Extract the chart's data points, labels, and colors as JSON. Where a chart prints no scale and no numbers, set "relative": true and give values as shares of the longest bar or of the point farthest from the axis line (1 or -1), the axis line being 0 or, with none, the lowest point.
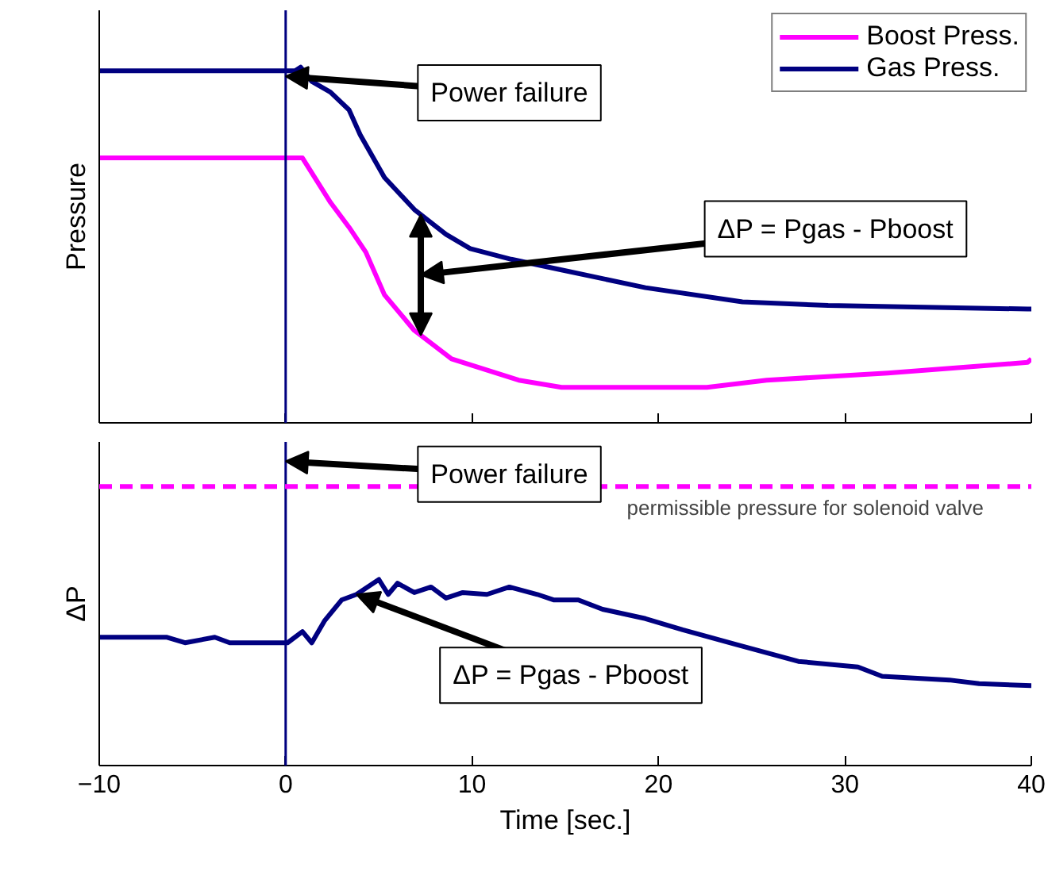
{
  "chart_data": [
    {
      "type": "line",
      "ylabel": "Pressure",
      "relative": true,
      "xlim": [
        -10,
        40
      ],
      "xticks": [
        -10,
        0,
        10,
        20,
        30,
        40
      ],
      "tick_labels": false,
      "legend": "top right",
      "line_style": "solid",
      "series": [
        {
          "name": "Boost Press.",
          "color": "#ff00ff",
          "x": [
            -10,
            0.9,
            2.4,
            3.4,
            4.3,
            5.3,
            6.9,
            7.9,
            8.9,
            12.5,
            14.8,
            22.6,
            25.8,
            32.3,
            39.8,
            40
          ],
          "values": [
            0.745,
            0.745,
            0.62,
            0.55,
            0.48,
            0.36,
            0.26,
            0.22,
            0.18,
            0.12,
            0.1,
            0.1,
            0.12,
            0.14,
            0.17,
            0.18
          ]
        },
        {
          "name": "Gas Press.",
          "color": "#000080",
          "x": [
            -10,
            0.5,
            0.8,
            1.4,
            2.4,
            3.4,
            4.0,
            5.3,
            6.9,
            8.6,
            9.9,
            12.1,
            14.8,
            19.3,
            24.5,
            29.1,
            39.8,
            40
          ],
          "values": [
            0.99,
            0.99,
            1.0,
            0.96,
            0.93,
            0.88,
            0.81,
            0.69,
            0.6,
            0.53,
            0.49,
            0.46,
            0.43,
            0.38,
            0.34,
            0.33,
            0.32,
            0.32
          ]
        }
      ],
      "ref_lines": [
        {
          "axis": "x",
          "value": 0,
          "color": "#000080"
        }
      ],
      "annotations": [
        "Power failure",
        "ΔP = Pgas - Pboost"
      ]
    },
    {
      "type": "line",
      "xlabel": "Time [sec.]",
      "ylabel": "ΔP",
      "relative": true,
      "xlim": [
        -10,
        40
      ],
      "xticks": [
        -10,
        0,
        10,
        20,
        30,
        40
      ],
      "tick_labels": "x",
      "line_style": "solid",
      "series": [
        {
          "color": "#000080",
          "x": [
            -10,
            -6.4,
            -5.4,
            -3.8,
            -3.0,
            0.1,
            0.9,
            1.4,
            2.1,
            3.0,
            3.8,
            5.0,
            5.5,
            6.0,
            6.9,
            7.8,
            8.6,
            9.5,
            10.8,
            12.0,
            13.5,
            14.4,
            15.7,
            17.0,
            19.3,
            21.3,
            24.2,
            27.5,
            30.7,
            32.0,
            35.6,
            37.2,
            40.0
          ],
          "values": [
            0.69,
            0.69,
            0.66,
            0.69,
            0.66,
            0.66,
            0.72,
            0.66,
            0.78,
            0.89,
            0.92,
            1.0,
            0.92,
            0.98,
            0.93,
            0.96,
            0.9,
            0.93,
            0.92,
            0.96,
            0.92,
            0.89,
            0.89,
            0.84,
            0.79,
            0.73,
            0.65,
            0.56,
            0.53,
            0.48,
            0.46,
            0.44,
            0.43
          ]
        }
      ],
      "ref_lines": [
        {
          "axis": "x",
          "value": 0,
          "color": "#000080"
        },
        {
          "axis": "y",
          "value": 1.5,
          "label": "permissible pressure for solenoid valve",
          "color": "#ff00ff",
          "line_style": "dashed"
        }
      ],
      "annotations": [
        "Power failure",
        {
          "text": "ΔP = Pgas - Pboost",
          "x": 3.8,
          "y": 0.92
        }
      ]
    }
  ]
}
